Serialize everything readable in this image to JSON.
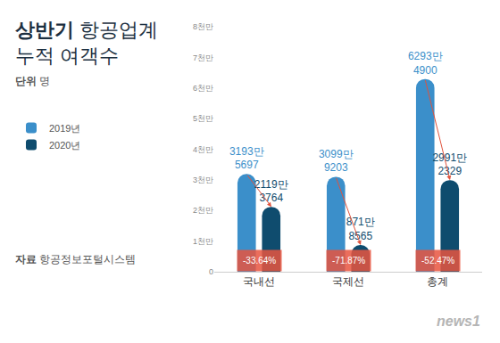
{
  "chart_data": {
    "type": "bar",
    "title": "상반기 항공업계\n누적 여객수",
    "unit_label": "단위",
    "unit": "명",
    "source_label": "자료",
    "source": "항공정보포털시스템",
    "logo": "news1",
    "categories": [
      "국내선",
      "국제선",
      "총계"
    ],
    "series": [
      {
        "name": "2019년",
        "color": "#3b8fca",
        "values": [
          31935697,
          30999203,
          62934900
        ],
        "value_labels": [
          "3193만\n5697",
          "3099만\n9203",
          "6293만\n4900"
        ]
      },
      {
        "name": "2020년",
        "color": "#0f4c6e",
        "values": [
          21193764,
          8718565,
          29912329
        ],
        "value_labels": [
          "2119만\n3764",
          "871만\n8565",
          "2991만\n2329"
        ]
      }
    ],
    "annotations": [
      {
        "category": "국내선",
        "text": "-33.64%"
      },
      {
        "category": "국제선",
        "text": "-71.87%"
      },
      {
        "category": "총계",
        "text": "-52.47%"
      }
    ],
    "ylim": [
      0,
      80000000
    ],
    "yticks": [
      0,
      {
        "value": 10000000,
        "label": "1천만"
      },
      {
        "value": 20000000,
        "label": "2천만"
      },
      {
        "value": 30000000,
        "label": "3천만"
      },
      {
        "value": 40000000,
        "label": "4천만"
      },
      {
        "value": 50000000,
        "label": "5천만"
      },
      {
        "value": 60000000,
        "label": "6천만"
      },
      {
        "value": 70000000,
        "label": "7천만"
      },
      {
        "value": 80000000,
        "label": "8천만"
      }
    ],
    "grid": false,
    "data_labels": true,
    "legend": "left"
  }
}
